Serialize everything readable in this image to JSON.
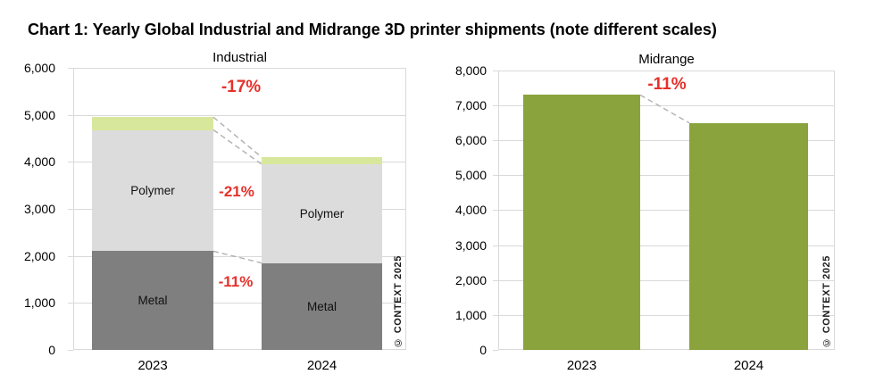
{
  "figure_title": "Chart 1: Yearly Global Industrial and Midrange 3D printer shipments (note different scales)",
  "copyright": "© CONTEXT 2025",
  "colors": {
    "metal": "#7f7f7f",
    "polymer": "#dcdcdc",
    "industrial_top_segment": "#d7e89c",
    "midrange": "#8aa33c",
    "annotation_red": "#e6312b",
    "gridline": "#d9d9d9",
    "connector": "#b0b0b0"
  },
  "chart_data": [
    {
      "type": "bar",
      "stacked": true,
      "title": "Industrial",
      "categories": [
        "2023",
        "2024"
      ],
      "series": [
        {
          "name": "Metal",
          "color_key": "metal",
          "values": [
            2100,
            1850
          ]
        },
        {
          "name": "Polymer",
          "color_key": "polymer",
          "values": [
            2580,
            2100
          ]
        },
        {
          "name": "",
          "color_key": "industrial_top_segment",
          "values": [
            270,
            150
          ]
        }
      ],
      "totals": [
        4950,
        4100
      ],
      "annotations": {
        "total": "-17%",
        "polymer": "-21%",
        "metal": "-11%"
      },
      "ylim": [
        0,
        6000
      ],
      "ytick_step": 1000,
      "grid": true,
      "legend": false,
      "xlabel": "",
      "ylabel": ""
    },
    {
      "type": "bar",
      "stacked": false,
      "title": "Midrange",
      "categories": [
        "2023",
        "2024"
      ],
      "series": [
        {
          "name": "",
          "color_key": "midrange",
          "values": [
            7300,
            6500
          ]
        }
      ],
      "totals": [
        7300,
        6500
      ],
      "annotations": {
        "total": "-11%"
      },
      "ylim": [
        0,
        8000
      ],
      "ytick_step": 1000,
      "grid": true,
      "legend": false,
      "xlabel": "",
      "ylabel": ""
    }
  ]
}
